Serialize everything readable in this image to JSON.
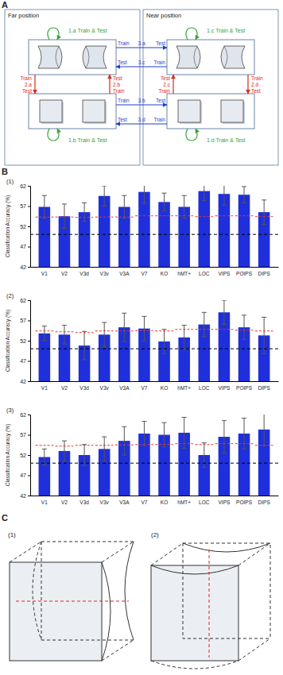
{
  "panel_labels": [
    "A",
    "B",
    "C"
  ],
  "diagram": {
    "far_label": "Far position",
    "near_label": "Near position",
    "green": [
      "1.a Train & Test",
      "1.b Train & Test",
      "1.c Train & Test",
      "1.d Train & Test"
    ],
    "red": [
      {
        "id": "2.a",
        "train": "Train",
        "test": "Test"
      },
      {
        "id": "2.b",
        "train": "Train",
        "test": "Test"
      },
      {
        "id": "2.c",
        "train": "Train",
        "test": "Test"
      },
      {
        "id": "2.d",
        "train": "Train",
        "test": "Test"
      }
    ],
    "blue": [
      {
        "id": "3.a",
        "train": "Train",
        "test": "Test"
      },
      {
        "id": "3.c",
        "train": "Train",
        "test": "Test"
      },
      {
        "id": "3.b",
        "train": "Train",
        "test": "Test"
      },
      {
        "id": "3.d",
        "train": "Train",
        "test": "Test"
      }
    ]
  },
  "chart_data": [
    {
      "type": "bar",
      "title": "(1)",
      "ylabel": "Classification Accuracy (%)",
      "categories": [
        "V1",
        "V2",
        "V3d",
        "V3v",
        "V3A",
        "V7",
        "KO",
        "hMT+",
        "LOC",
        "VIPS",
        "POIPS",
        "DIPS"
      ],
      "values": [
        56.8,
        54.5,
        55.5,
        59.5,
        56.8,
        60.5,
        58.0,
        56.8,
        60.7,
        60.0,
        59.8,
        55.5
      ],
      "errors": [
        2.8,
        3.0,
        2.3,
        2.5,
        2.8,
        2.8,
        2.2,
        2.8,
        2.3,
        2.8,
        2.0,
        3.0
      ],
      "thresholds": [
        54.3,
        54.3,
        54.2,
        54.3,
        54.3,
        54.6,
        54.6,
        54.6,
        54.4,
        54.6,
        54.6,
        54.4
      ],
      "chance": 50,
      "color": "#1f2fdb",
      "ylim": [
        42,
        62
      ],
      "yticks": [
        42,
        47,
        52,
        57,
        62
      ]
    },
    {
      "type": "bar",
      "title": "(2)",
      "ylabel": "Classification Accuracy (%)",
      "categories": [
        "V1",
        "V2",
        "V3d",
        "V3v",
        "V3A",
        "V7",
        "KO",
        "hMT+",
        "LOC",
        "VIPS",
        "POIPS",
        "DIPS"
      ],
      "values": [
        53.8,
        53.5,
        50.8,
        53.5,
        55.3,
        55.0,
        51.8,
        52.8,
        56.0,
        59.0,
        55.3,
        53.3
      ],
      "errors": [
        1.8,
        2.3,
        3.5,
        3.0,
        3.5,
        3.0,
        3.0,
        3.0,
        3.0,
        3.0,
        3.0,
        4.5
      ],
      "thresholds": [
        54.4,
        54.2,
        54.0,
        54.4,
        54.4,
        54.5,
        54.4,
        54.8,
        54.8,
        54.8,
        54.6,
        54.4
      ],
      "chance": 50,
      "color": "#1f2fdb",
      "ylim": [
        42,
        62
      ],
      "yticks": [
        42,
        47,
        52,
        57,
        62
      ]
    },
    {
      "type": "bar",
      "title": "(3)",
      "ylabel": "Classification Accuracy (%)",
      "categories": [
        "V1",
        "V2",
        "V3d",
        "V3v",
        "V3A",
        "V7",
        "KO",
        "hMT+",
        "LOC",
        "VIPS",
        "POIPS",
        "DIPS"
      ],
      "values": [
        51.5,
        53.0,
        52.0,
        53.5,
        55.5,
        57.3,
        57.0,
        57.5,
        52.0,
        56.5,
        57.3,
        58.3
      ],
      "errors": [
        2.0,
        2.5,
        2.6,
        3.0,
        3.5,
        3.0,
        3.0,
        3.8,
        3.0,
        4.0,
        3.8,
        4.0
      ],
      "thresholds": [
        54.4,
        54.2,
        54.4,
        54.4,
        54.5,
        54.6,
        54.6,
        54.8,
        54.6,
        54.8,
        54.8,
        54.4
      ],
      "chance": 50,
      "color": "#1f2fdb",
      "ylim": [
        42,
        62
      ],
      "yticks": [
        42,
        47,
        52,
        57,
        62
      ]
    }
  ],
  "panel_c": {
    "labels": [
      "(1)",
      "(2)"
    ]
  }
}
